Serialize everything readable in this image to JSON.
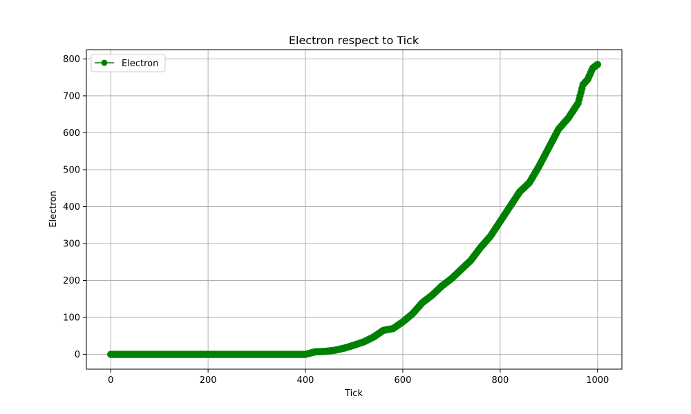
{
  "chart_data": {
    "type": "line",
    "title": "Electron respect to Tick",
    "xlabel": "Tick",
    "ylabel": "Electron",
    "xlim": [
      -50,
      1050
    ],
    "ylim": [
      -40,
      825
    ],
    "xticks": [
      0,
      200,
      400,
      600,
      800,
      1000
    ],
    "yticks": [
      0,
      100,
      200,
      300,
      400,
      500,
      600,
      700,
      800
    ],
    "grid": true,
    "legend_position": "top-left",
    "series": [
      {
        "name": "Electron",
        "color": "#008000",
        "marker": "circle",
        "points": [
          [
            0,
            0
          ],
          [
            100,
            0
          ],
          [
            200,
            0
          ],
          [
            300,
            0
          ],
          [
            400,
            0
          ],
          [
            420,
            7
          ],
          [
            440,
            8
          ],
          [
            460,
            11
          ],
          [
            480,
            17
          ],
          [
            500,
            25
          ],
          [
            520,
            34
          ],
          [
            540,
            47
          ],
          [
            560,
            65
          ],
          [
            580,
            70
          ],
          [
            600,
            88
          ],
          [
            620,
            110
          ],
          [
            640,
            140
          ],
          [
            660,
            160
          ],
          [
            680,
            185
          ],
          [
            700,
            205
          ],
          [
            720,
            230
          ],
          [
            740,
            255
          ],
          [
            760,
            290
          ],
          [
            780,
            320
          ],
          [
            800,
            360
          ],
          [
            820,
            400
          ],
          [
            840,
            440
          ],
          [
            860,
            465
          ],
          [
            880,
            510
          ],
          [
            900,
            560
          ],
          [
            920,
            610
          ],
          [
            940,
            640
          ],
          [
            960,
            680
          ],
          [
            970,
            730
          ],
          [
            980,
            745
          ],
          [
            990,
            775
          ],
          [
            1000,
            785
          ]
        ]
      }
    ]
  }
}
